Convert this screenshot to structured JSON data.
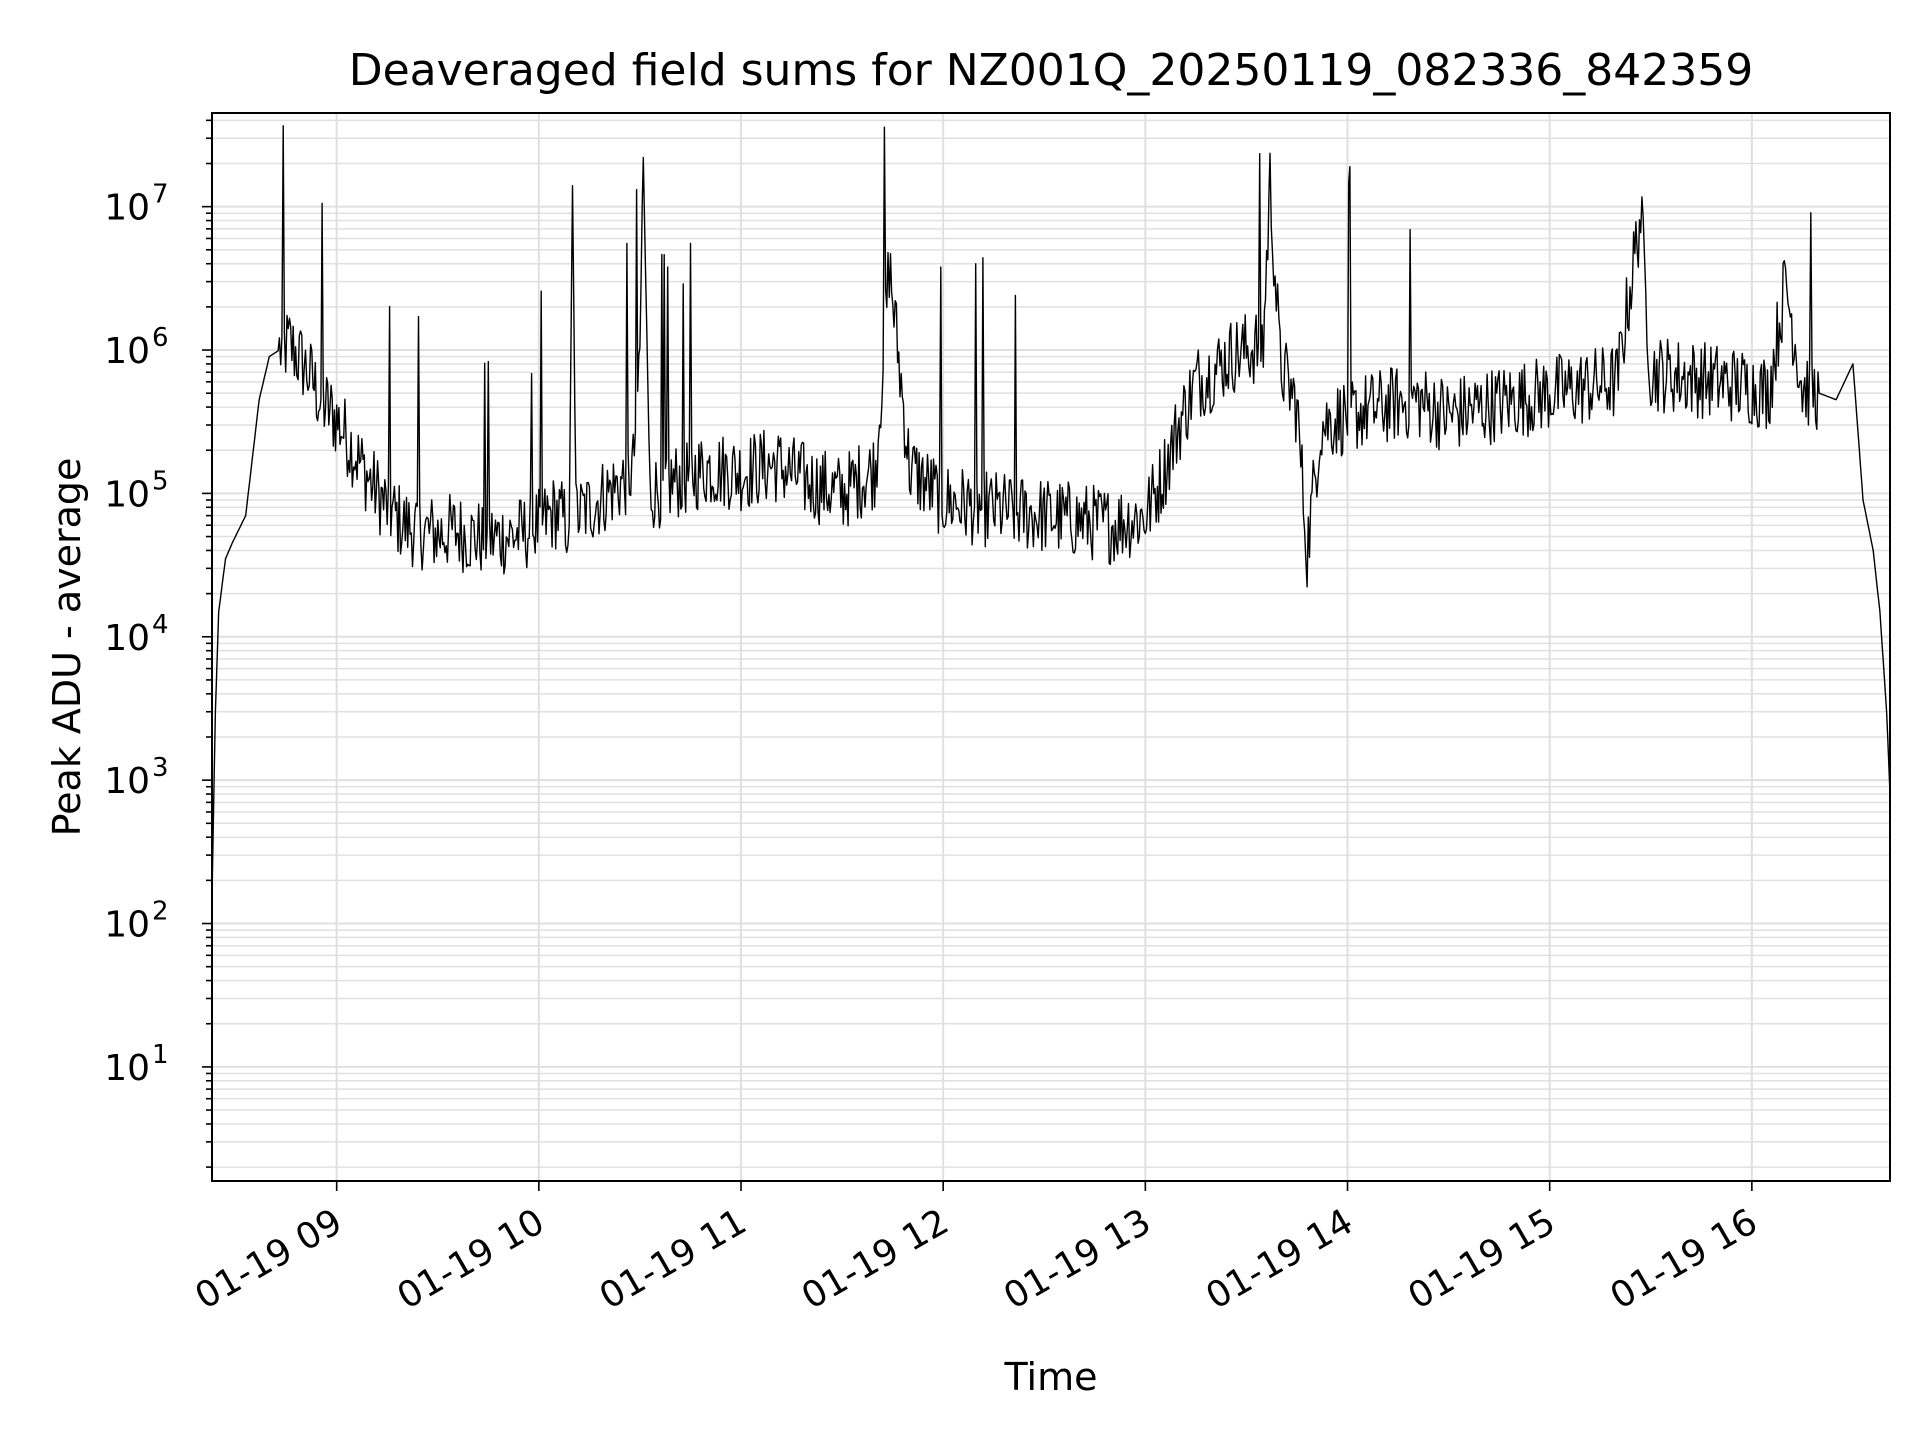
{
  "chart_data": {
    "type": "line",
    "title": "Deaveraged field sums for NZ001Q_20250119_082336_842359",
    "xlabel": "Time",
    "ylabel": "Peak ADU - average",
    "yscale": "log",
    "ylim": [
      1.6,
      45000000
    ],
    "xlim": [
      "2025-01-19 08:23",
      "2025-01-19 16:41"
    ],
    "grid": true,
    "legend": "none",
    "line_color": "#000000",
    "grid_color": "#e0e0e0",
    "x_ticks": [
      {
        "value": "2025-01-19 09:00",
        "label": "01-19 09"
      },
      {
        "value": "2025-01-19 10:00",
        "label": "01-19 10"
      },
      {
        "value": "2025-01-19 11:00",
        "label": "01-19 11"
      },
      {
        "value": "2025-01-19 12:00",
        "label": "01-19 12"
      },
      {
        "value": "2025-01-19 13:00",
        "label": "01-19 13"
      },
      {
        "value": "2025-01-19 14:00",
        "label": "01-19 14"
      },
      {
        "value": "2025-01-19 15:00",
        "label": "01-19 15"
      },
      {
        "value": "2025-01-19 16:00",
        "label": "01-19 16"
      }
    ],
    "y_ticks": [
      {
        "value": 10,
        "base": "10",
        "exp": "1"
      },
      {
        "value": 100,
        "base": "10",
        "exp": "2"
      },
      {
        "value": 1000,
        "base": "10",
        "exp": "3"
      },
      {
        "value": 10000,
        "base": "10",
        "exp": "4"
      },
      {
        "value": 100000,
        "base": "10",
        "exp": "5"
      },
      {
        "value": 1000000,
        "base": "10",
        "exp": "6"
      },
      {
        "value": 10000000,
        "base": "10",
        "exp": "7"
      }
    ],
    "series": [
      {
        "x": [
          "2025-01-19 08:23",
          "2025-01-19 08:24",
          "2025-01-19 08:25",
          "2025-01-19 08:27",
          "2025-01-19 08:29",
          "2025-01-19 08:33",
          "2025-01-19 08:37",
          "2025-01-19 08:40",
          "2025-01-19 08:43",
          "2025-01-19 08:46",
          "2025-01-19 08:50",
          "2025-01-19 08:53",
          "2025-01-19 08:55",
          "2025-01-19 08:57",
          "2025-01-19 08:59",
          "2025-01-19 09:01",
          "2025-01-19 09:05",
          "2025-01-19 09:10",
          "2025-01-19 09:15",
          "2025-01-19 09:20",
          "2025-01-19 09:25",
          "2025-01-19 09:30",
          "2025-01-19 09:35",
          "2025-01-19 09:40",
          "2025-01-19 09:45",
          "2025-01-19 09:50",
          "2025-01-19 09:55",
          "2025-01-19 10:00",
          "2025-01-19 10:05",
          "2025-01-19 10:09",
          "2025-01-19 10:10",
          "2025-01-19 10:11",
          "2025-01-19 10:15",
          "2025-01-19 10:20",
          "2025-01-19 10:25",
          "2025-01-19 10:28",
          "2025-01-19 10:30",
          "2025-01-19 10:31",
          "2025-01-19 10:33",
          "2025-01-19 10:40",
          "2025-01-19 10:50",
          "2025-01-19 11:00",
          "2025-01-19 11:10",
          "2025-01-19 11:20",
          "2025-01-19 11:30",
          "2025-01-19 11:40",
          "2025-01-19 11:44",
          "2025-01-19 11:50",
          "2025-01-19 12:00",
          "2025-01-19 12:10",
          "2025-01-19 12:20",
          "2025-01-19 12:30",
          "2025-01-19 12:40",
          "2025-01-19 12:50",
          "2025-01-19 13:00",
          "2025-01-19 13:05",
          "2025-01-19 13:10",
          "2025-01-19 13:15",
          "2025-01-19 13:20",
          "2025-01-19 13:25",
          "2025-01-19 13:30",
          "2025-01-19 13:35",
          "2025-01-19 13:37",
          "2025-01-19 13:40",
          "2025-01-19 13:45",
          "2025-01-19 13:48",
          "2025-01-19 13:52",
          "2025-01-19 14:00",
          "2025-01-19 14:10",
          "2025-01-19 14:20",
          "2025-01-19 14:30",
          "2025-01-19 14:40",
          "2025-01-19 14:50",
          "2025-01-19 15:00",
          "2025-01-19 15:10",
          "2025-01-19 15:20",
          "2025-01-19 15:27",
          "2025-01-19 15:30",
          "2025-01-19 15:40",
          "2025-01-19 15:50",
          "2025-01-19 16:00",
          "2025-01-19 16:05",
          "2025-01-19 16:10",
          "2025-01-19 16:15",
          "2025-01-19 16:20",
          "2025-01-19 16:25",
          "2025-01-19 16:30",
          "2025-01-19 16:33",
          "2025-01-19 16:36",
          "2025-01-19 16:38",
          "2025-01-19 16:40",
          "2025-01-19 16:41"
        ],
        "y": [
          150,
          3000,
          15000,
          35000,
          45000,
          70000,
          450000,
          900000,
          1000000,
          1100000,
          800000,
          600000,
          450000,
          400000,
          350000,
          300000,
          200000,
          120000,
          80000,
          60000,
          55000,
          52000,
          55000,
          50000,
          48000,
          50000,
          52000,
          60000,
          75000,
          60000,
          14000000,
          70000,
          80000,
          100000,
          120000,
          150000,
          1000000,
          22000000,
          100000,
          120000,
          150000,
          140000,
          160000,
          120000,
          100000,
          150000,
          4000000,
          150000,
          90000,
          80000,
          75000,
          70000,
          65000,
          60000,
          70000,
          130000,
          300000,
          600000,
          700000,
          900000,
          1000000,
          1100000,
          15000000,
          800000,
          400000,
          40000,
          300000,
          350000,
          400000,
          450000,
          350000,
          400000,
          450000,
          500000,
          550000,
          600000,
          9000000,
          700000,
          650000,
          600000,
          550000,
          500000,
          3000000,
          550000,
          500000,
          450000,
          800000,
          90000,
          40000,
          15000,
          3000,
          800
        ]
      }
    ]
  }
}
